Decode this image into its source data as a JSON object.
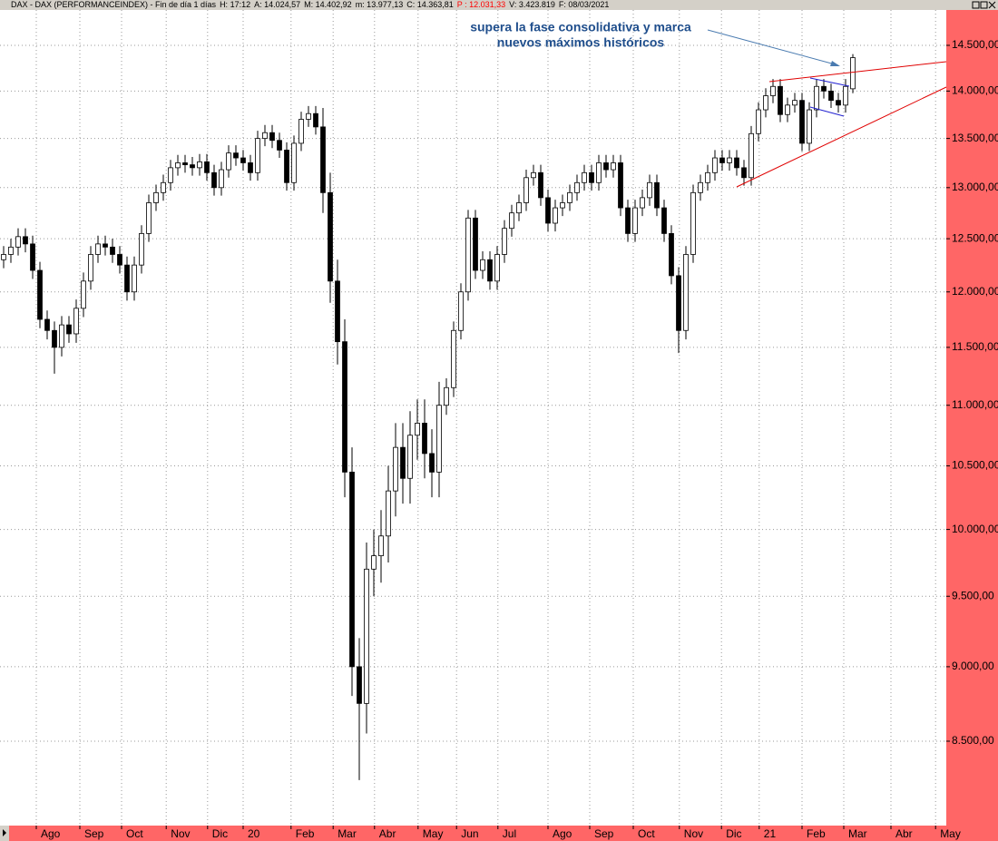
{
  "header": [
    {
      "text": "DAX - DAX (PERFORMANCEINDEX) - Fin de día 1 días",
      "color": "#000000"
    },
    {
      "text": "H: 17:12",
      "color": "#000000"
    },
    {
      "text": "A: 14.024,57",
      "color": "#000000"
    },
    {
      "text": "M: 14.402,92",
      "color": "#000000"
    },
    {
      "text": "m: 13.977,13",
      "color": "#000000"
    },
    {
      "text": "C: 14.363,81",
      "color": "#000000"
    },
    {
      "text": "P : 12.031,33",
      "color": "#ff0000"
    },
    {
      "text": "V: 3.423.819",
      "color": "#000000"
    },
    {
      "text": "F: 08/03/2021",
      "color": "#000000"
    }
  ],
  "chart_data": {
    "type": "candlestick",
    "annotation": [
      "supera la fase consolidativa y marca",
      "nuevos máximos históricos"
    ],
    "up_color": "#ffffff",
    "down_color": "#000000",
    "axis_color": "#ff6666",
    "log_scale": true,
    "grid": true,
    "ylim": [
      7978,
      14899
    ],
    "yticks": [
      {
        "value": 8500,
        "label": "8.500,00"
      },
      {
        "value": 9000,
        "label": "9.000,00"
      },
      {
        "value": 9500,
        "label": "9.500,00"
      },
      {
        "value": 10000,
        "label": "10.000,00"
      },
      {
        "value": 10500,
        "label": "10.500,00"
      },
      {
        "value": 11000,
        "label": "11.000,00"
      },
      {
        "value": 11500,
        "label": "11.500,00"
      },
      {
        "value": 12000,
        "label": "12.000,00"
      },
      {
        "value": 12500,
        "label": "12.500,00"
      },
      {
        "value": 13000,
        "label": "13.000,00"
      },
      {
        "value": 13500,
        "label": "13.500,00"
      },
      {
        "value": 14000,
        "label": "14.000,00"
      },
      {
        "value": 14500,
        "label": "14.500,00"
      }
    ],
    "xlim": [
      -0.5,
      129.875
    ],
    "xticks": [
      {
        "value": 4.5,
        "label": "Ago"
      },
      {
        "value": 10.5,
        "label": "Sep"
      },
      {
        "value": 16.25,
        "label": "Oct"
      },
      {
        "value": 22.4,
        "label": "Nov"
      },
      {
        "value": 28.1,
        "label": "Dic"
      },
      {
        "value": 33,
        "label": "20"
      },
      {
        "value": 39.6,
        "label": "Feb"
      },
      {
        "value": 45.4,
        "label": "Mar"
      },
      {
        "value": 51.1,
        "label": "Abr"
      },
      {
        "value": 57.1,
        "label": "May"
      },
      {
        "value": 62.4,
        "label": "Jun"
      },
      {
        "value": 68.1,
        "label": "Jul"
      },
      {
        "value": 75,
        "label": "Ago"
      },
      {
        "value": 80.75,
        "label": "Sep"
      },
      {
        "value": 86.75,
        "label": "Oct"
      },
      {
        "value": 93.1,
        "label": "Nov"
      },
      {
        "value": 98.9,
        "label": "Dic"
      },
      {
        "value": 104.1,
        "label": "21"
      },
      {
        "value": 110,
        "label": "Feb"
      },
      {
        "value": 115.75,
        "label": "Mar"
      },
      {
        "value": 122.25,
        "label": "Abr"
      },
      {
        "value": 128.4,
        "label": "May"
      }
    ],
    "open": [
      12300,
      12350,
      12420,
      12520,
      12450,
      12200,
      11750,
      11650,
      11500,
      11700,
      11620,
      11850,
      12100,
      12350,
      12450,
      12420,
      12350,
      12250,
      12000,
      12250,
      12550,
      12850,
      12950,
      13050,
      13200,
      13250,
      13230,
      13200,
      13260,
      13150,
      13000,
      13180,
      13350,
      13300,
      13250,
      13150,
      13500,
      13560,
      13480,
      13380,
      13050,
      13450,
      13700,
      13760,
      13620,
      12950,
      12100,
      11550,
      10450,
      9000,
      8750,
      9700,
      9800,
      9950,
      10300,
      10650,
      10400,
      10750,
      10850,
      10600,
      10450,
      11000,
      11150,
      11650,
      12000,
      12700,
      12200,
      12300,
      12100,
      12350,
      12600,
      12750,
      12850,
      13100,
      13150,
      12900,
      12650,
      12800,
      12850,
      12950,
      13050,
      13150,
      13050,
      13250,
      13180,
      13250,
      12800,
      12550,
      12800,
      12900,
      13050,
      12800,
      12550,
      12150,
      11650,
      12350,
      12950,
      13050,
      13150,
      13300,
      13250,
      13300,
      13200,
      13100,
      13550,
      13800,
      13950,
      14050,
      13750,
      13850,
      13900,
      13450,
      13800,
      14050,
      14000,
      13900,
      13850,
      14024.57
    ],
    "high": [
      12430,
      12500,
      12600,
      12600,
      12530,
      12280,
      11830,
      11730,
      11780,
      11780,
      11930,
      12180,
      12430,
      12530,
      12530,
      12500,
      12430,
      12330,
      12330,
      12630,
      12930,
      13030,
      13130,
      13280,
      13330,
      13330,
      13310,
      13340,
      13340,
      13230,
      13260,
      13430,
      13430,
      13380,
      13330,
      13580,
      13640,
      13640,
      13560,
      13460,
      13530,
      13780,
      13840,
      13840,
      13820,
      13150,
      12300,
      11750,
      10650,
      9200,
      9900,
      10000,
      10150,
      10500,
      10850,
      10850,
      10950,
      11050,
      11050,
      10800,
      11200,
      11230,
      11730,
      12080,
      12780,
      12780,
      12380,
      12380,
      12430,
      12680,
      12830,
      12930,
      13180,
      13230,
      13230,
      12980,
      12880,
      12930,
      13030,
      13130,
      13230,
      13230,
      13330,
      13330,
      13330,
      13330,
      12880,
      12880,
      12980,
      13130,
      13130,
      12880,
      12630,
      12230,
      12430,
      13030,
      13130,
      13230,
      13380,
      13380,
      13380,
      13380,
      13280,
      13630,
      13880,
      14030,
      14130,
      14130,
      13930,
      13980,
      13980,
      13880,
      14130,
      14130,
      14080,
      13980,
      14130,
      14402.92
    ],
    "low": [
      12220,
      12270,
      12340,
      12370,
      12120,
      11670,
      11570,
      11270,
      11420,
      11540,
      11540,
      11770,
      12020,
      12270,
      12340,
      12270,
      12170,
      11920,
      11920,
      12170,
      12470,
      12770,
      12870,
      12970,
      13120,
      13150,
      13120,
      13120,
      13070,
      12920,
      12920,
      13100,
      13220,
      13170,
      13070,
      13070,
      13420,
      13400,
      13300,
      12970,
      12970,
      13370,
      13620,
      13540,
      12750,
      11900,
      11350,
      10250,
      8800,
      8250,
      8550,
      9500,
      9600,
      9750,
      10100,
      10200,
      10200,
      10550,
      10400,
      10250,
      10250,
      10920,
      11070,
      11570,
      11920,
      12120,
      12120,
      12020,
      12020,
      12270,
      12520,
      12670,
      12770,
      13020,
      12820,
      12570,
      12570,
      12720,
      12770,
      12870,
      12970,
      12970,
      12970,
      13100,
      13100,
      12720,
      12470,
      12470,
      12720,
      12820,
      12720,
      12470,
      12070,
      11450,
      11570,
      12270,
      12870,
      12970,
      13070,
      13170,
      13170,
      13120,
      13020,
      13020,
      13470,
      13720,
      13870,
      13670,
      13670,
      13770,
      13370,
      13370,
      13720,
      13920,
      13820,
      13770,
      13770,
      13977.13
    ],
    "close": [
      12350,
      12420,
      12520,
      12450,
      12200,
      11750,
      11650,
      11500,
      11700,
      11620,
      11850,
      12100,
      12350,
      12450,
      12420,
      12350,
      12250,
      12000,
      12250,
      12550,
      12850,
      12950,
      13050,
      13200,
      13250,
      13230,
      13200,
      13260,
      13150,
      13000,
      13180,
      13350,
      13300,
      13250,
      13150,
      13500,
      13560,
      13480,
      13380,
      13050,
      13450,
      13700,
      13760,
      13620,
      12950,
      12100,
      11550,
      10450,
      9000,
      8750,
      9700,
      9800,
      9950,
      10300,
      10650,
      10400,
      10750,
      10850,
      10600,
      10450,
      11000,
      11150,
      11650,
      12000,
      12700,
      12200,
      12300,
      12100,
      12350,
      12600,
      12750,
      12850,
      13100,
      13150,
      12900,
      12650,
      12800,
      12850,
      12950,
      13050,
      13150,
      13050,
      13250,
      13180,
      13250,
      12800,
      12550,
      12800,
      12900,
      13050,
      12800,
      12550,
      12150,
      11650,
      12350,
      12950,
      13050,
      13150,
      13300,
      13250,
      13300,
      13200,
      13100,
      13550,
      13800,
      13950,
      14050,
      13750,
      13850,
      13900,
      13450,
      13800,
      14050,
      14000,
      13900,
      13850,
      14050,
      14363.81
    ]
  }
}
